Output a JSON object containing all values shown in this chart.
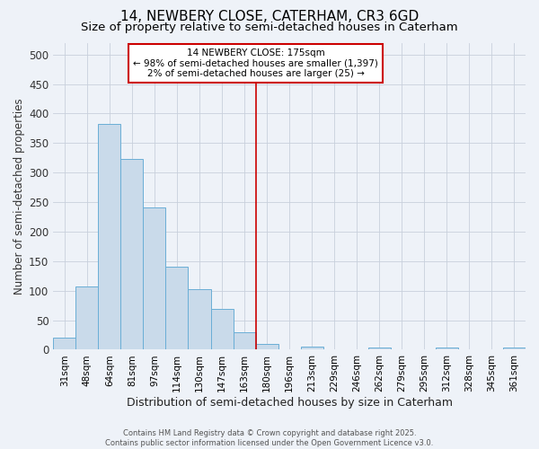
{
  "title1": "14, NEWBERY CLOSE, CATERHAM, CR3 6GD",
  "title2": "Size of property relative to semi-detached houses in Caterham",
  "xlabel": "Distribution of semi-detached houses by size in Caterham",
  "ylabel": "Number of semi-detached properties",
  "categories": [
    "31sqm",
    "48sqm",
    "64sqm",
    "81sqm",
    "97sqm",
    "114sqm",
    "130sqm",
    "147sqm",
    "163sqm",
    "180sqm",
    "196sqm",
    "213sqm",
    "229sqm",
    "246sqm",
    "262sqm",
    "279sqm",
    "295sqm",
    "312sqm",
    "328sqm",
    "345sqm",
    "361sqm"
  ],
  "values": [
    20,
    107,
    383,
    323,
    241,
    141,
    102,
    69,
    30,
    10,
    0,
    6,
    0,
    0,
    3,
    0,
    0,
    4,
    0,
    0,
    4
  ],
  "bar_color": "#c9daea",
  "bar_edge_color": "#6aaed6",
  "vline_x": 8.5,
  "vline_color": "#cc0000",
  "annotation_text": "14 NEWBERY CLOSE: 175sqm\n← 98% of semi-detached houses are smaller (1,397)\n2% of semi-detached houses are larger (25) →",
  "annotation_box_color": "#cc0000",
  "ylim": [
    0,
    520
  ],
  "yticks": [
    0,
    50,
    100,
    150,
    200,
    250,
    300,
    350,
    400,
    450,
    500
  ],
  "footer": "Contains HM Land Registry data © Crown copyright and database right 2025.\nContains public sector information licensed under the Open Government Licence v3.0.",
  "background_color": "#eef2f8",
  "grid_color": "#c8d0dc",
  "title1_fontsize": 11,
  "title2_fontsize": 9.5,
  "tick_fontsize": 7.5,
  "ylabel_fontsize": 8.5,
  "xlabel_fontsize": 9,
  "footer_fontsize": 6,
  "annotation_fontsize": 7.5
}
